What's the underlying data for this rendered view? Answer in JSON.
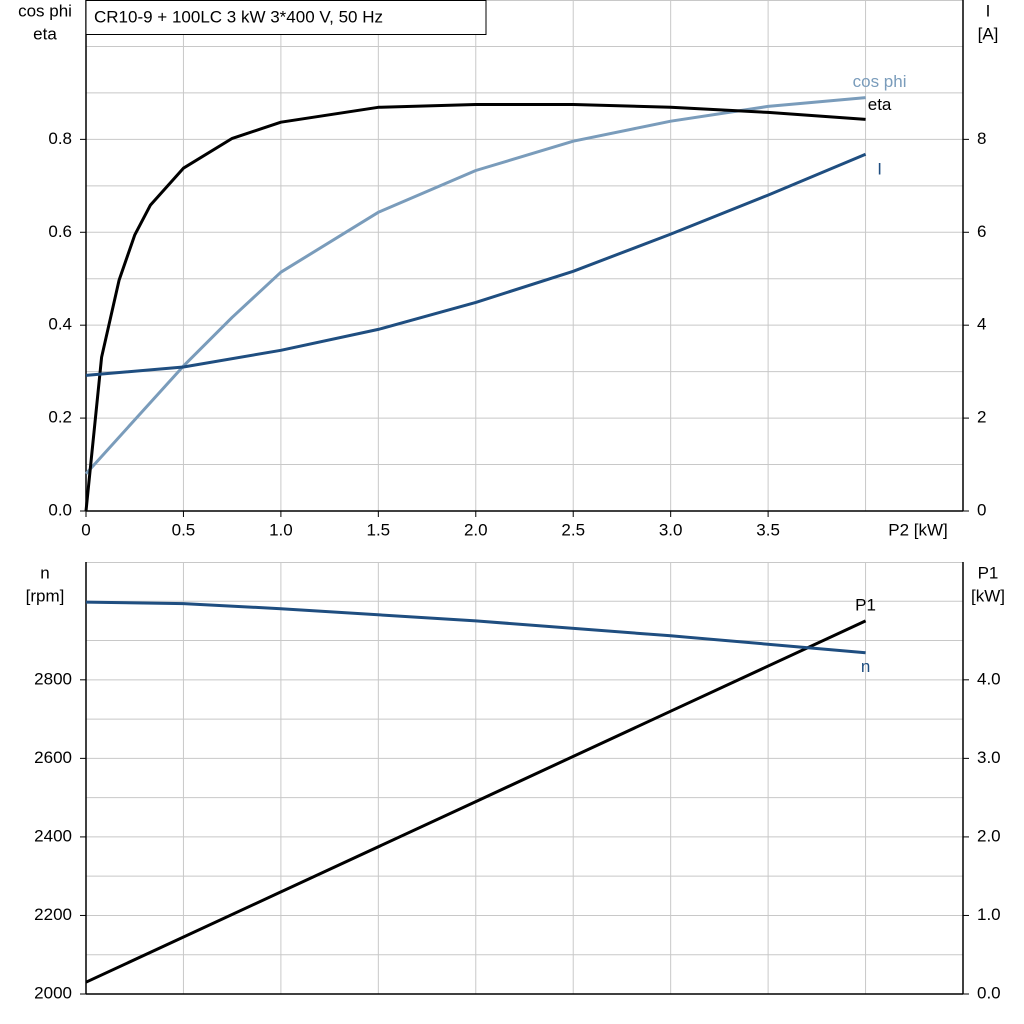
{
  "chart_data": [
    {
      "type": "line",
      "title": "CR10-9 + 100LC   3 kW   3*400 V, 50 Hz",
      "xlabel": "P2 [kW]",
      "ylabel": [
        "cos phi",
        "eta"
      ],
      "y2label": [
        "I",
        "[A]"
      ],
      "xlim": [
        0,
        4.5
      ],
      "xticks": [
        0,
        0.5,
        {
          "value": 1,
          "label": "1.0"
        },
        1.5,
        {
          "value": 2,
          "label": "2.0"
        },
        2.5,
        {
          "value": 3,
          "label": "3.0"
        },
        3.5
      ],
      "xgrid": [
        0.5,
        1,
        1.5,
        2,
        2.5,
        3,
        3.5,
        4
      ],
      "ylim": [
        0,
        1.1
      ],
      "yticks": [
        {
          "value": 0,
          "label": "0.0"
        },
        0.2,
        0.4,
        0.6,
        0.8
      ],
      "ygrid": [
        0.1,
        0.2,
        0.3,
        0.4,
        0.5,
        0.6,
        0.7,
        0.8,
        0.9,
        1.0
      ],
      "y2lim": [
        0,
        11
      ],
      "y2ticks": [
        0,
        2,
        4,
        6,
        8
      ],
      "series": [
        {
          "name": "cos phi",
          "color": "#7a9cbb",
          "axis": "y",
          "x": [
            0,
            0.25,
            0.5,
            0.75,
            1.0,
            1.5,
            2.0,
            2.5,
            3.0,
            3.5,
            4.0
          ],
          "values": [
            0.08,
            0.196,
            0.312,
            0.417,
            0.514,
            0.643,
            0.733,
            0.796,
            0.839,
            0.871,
            0.89
          ]
        },
        {
          "name": "eta",
          "color": "#000000",
          "axis": "y",
          "x": [
            0,
            0.08,
            0.17,
            0.25,
            0.33,
            0.5,
            0.75,
            1.0,
            1.5,
            2.0,
            2.5,
            3.0,
            3.5,
            4.0
          ],
          "values": [
            0,
            0.331,
            0.497,
            0.594,
            0.658,
            0.738,
            0.802,
            0.837,
            0.869,
            0.875,
            0.875,
            0.869,
            0.858,
            0.843
          ]
        },
        {
          "name": "I",
          "color": "#1f4e80",
          "axis": "y2",
          "x": [
            0,
            0.5,
            1.0,
            1.5,
            2.0,
            2.5,
            3.0,
            3.5,
            4.0
          ],
          "values": [
            2.92,
            3.1,
            3.46,
            3.91,
            4.49,
            5.16,
            5.96,
            6.8,
            7.68
          ]
        }
      ]
    },
    {
      "type": "line",
      "ylabel": [
        "n",
        "[rpm]"
      ],
      "y2label": [
        "P1",
        "[kW]"
      ],
      "xlim": [
        0,
        4.5
      ],
      "xgrid": [
        0.5,
        1,
        1.5,
        2,
        2.5,
        3,
        3.5,
        4
      ],
      "ylim": [
        2000,
        3100
      ],
      "yticks": [
        2000,
        2200,
        2400,
        2600,
        2800
      ],
      "ygrid": [
        2100,
        2200,
        2300,
        2400,
        2500,
        2600,
        2700,
        2800,
        2900,
        3000
      ],
      "y2lim": [
        0,
        5.5
      ],
      "y2ticks": [
        {
          "value": 0,
          "label": "0.0"
        },
        {
          "value": 1,
          "label": "1.0"
        },
        {
          "value": 2,
          "label": "2.0"
        },
        {
          "value": 3,
          "label": "3.0"
        },
        {
          "value": 4,
          "label": "4.0"
        }
      ],
      "series": [
        {
          "name": "P1",
          "color": "#000000",
          "axis": "y2",
          "x": [
            0,
            1,
            2,
            3,
            4
          ],
          "values": [
            0.15,
            1.3,
            2.45,
            3.6,
            4.75
          ]
        },
        {
          "name": "n",
          "color": "#1f4e80",
          "axis": "y",
          "x": [
            0,
            0.5,
            1,
            2,
            3,
            4
          ],
          "values": [
            2998,
            2994,
            2981,
            2950,
            2912,
            2869
          ]
        }
      ]
    }
  ]
}
